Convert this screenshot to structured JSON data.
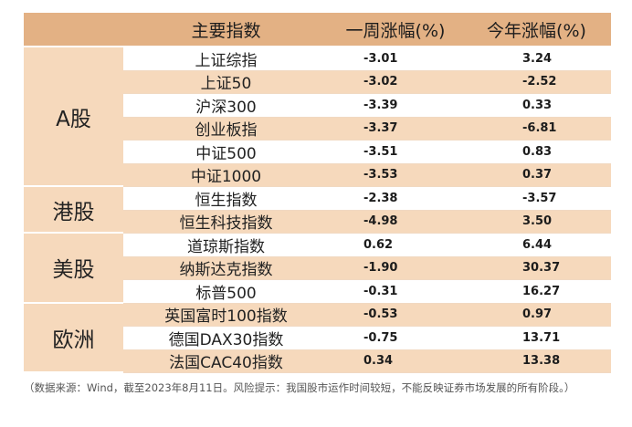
{
  "header": {
    "col_index": "主要指数",
    "col_week": "一周涨幅(%)",
    "col_ytd": "今年涨幅(%)"
  },
  "groups": [
    {
      "label": "A股",
      "rows": [
        {
          "name": "上证综指",
          "week": "-3.01",
          "ytd": "3.24"
        },
        {
          "name": "上证50",
          "week": "-3.02",
          "ytd": "-2.52"
        },
        {
          "name": "沪深300",
          "week": "-3.39",
          "ytd": "0.33"
        },
        {
          "name": "创业板指",
          "week": "-3.37",
          "ytd": "-6.81"
        },
        {
          "name": "中证500",
          "week": "-3.51",
          "ytd": "0.83"
        },
        {
          "name": "中证1000",
          "week": "-3.53",
          "ytd": "0.37"
        }
      ]
    },
    {
      "label": "港股",
      "rows": [
        {
          "name": "恒生指数",
          "week": "-2.38",
          "ytd": "-3.57"
        },
        {
          "name": "恒生科技指数",
          "week": "-4.98",
          "ytd": "3.50"
        }
      ]
    },
    {
      "label": "美股",
      "rows": [
        {
          "name": "道琼斯指数",
          "week": "0.62",
          "ytd": "6.44"
        },
        {
          "name": "纳斯达克指数",
          "week": "-1.90",
          "ytd": "30.37"
        },
        {
          "name": "标普500",
          "week": "-0.31",
          "ytd": "16.27"
        }
      ]
    },
    {
      "label": "欧洲",
      "rows": [
        {
          "name": "英国富时100指数",
          "week": "-0.53",
          "ytd": "0.97"
        },
        {
          "name": "德国DAX30指数",
          "week": "-0.75",
          "ytd": "13.71"
        },
        {
          "name": "法国CAC40指数",
          "week": "0.34",
          "ytd": "13.38"
        }
      ]
    }
  ],
  "note": "（数据来源：Wind，截至2023年8月11日。风险提示：我国股市运作时间较短，不能反映证券市场发展的所有阶段。）"
}
